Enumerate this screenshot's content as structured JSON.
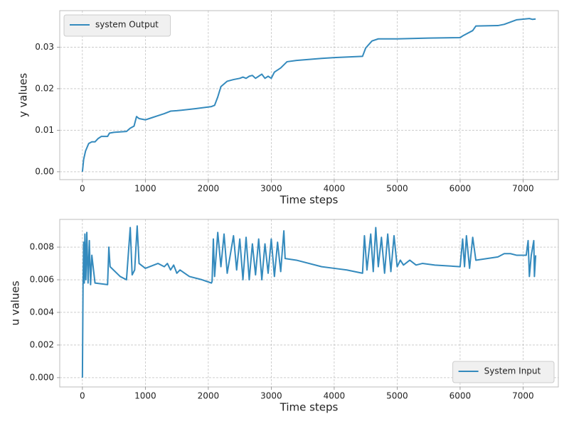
{
  "chart_data": [
    {
      "type": "line",
      "xlabel": "Time steps",
      "ylabel": "y values",
      "x": [
        0,
        20,
        50,
        100,
        150,
        200,
        250,
        300,
        400,
        430,
        500,
        700,
        760,
        820,
        860,
        900,
        1000,
        1100,
        1200,
        1300,
        1400,
        1500,
        1800,
        2050,
        2100,
        2150,
        2200,
        2300,
        2400,
        2500,
        2550,
        2600,
        2650,
        2700,
        2750,
        2800,
        2850,
        2900,
        2950,
        3000,
        3050,
        3150,
        3250,
        3400,
        3800,
        4000,
        4450,
        4500,
        4600,
        4700,
        5000,
        5500,
        6000,
        6050,
        6200,
        6250,
        6600,
        6700,
        6900,
        7100,
        7150,
        7200
      ],
      "series": [
        {
          "name": "system Output",
          "color": "#348abd",
          "values": [
            0,
            0.003,
            0.005,
            0.0068,
            0.0072,
            0.0072,
            0.008,
            0.0085,
            0.0085,
            0.0093,
            0.0095,
            0.0097,
            0.0105,
            0.011,
            0.0133,
            0.0128,
            0.0125,
            0.013,
            0.0135,
            0.014,
            0.0146,
            0.0147,
            0.0152,
            0.0157,
            0.016,
            0.018,
            0.0205,
            0.0218,
            0.0222,
            0.0225,
            0.0228,
            0.0225,
            0.023,
            0.0232,
            0.0225,
            0.023,
            0.0235,
            0.0225,
            0.023,
            0.0225,
            0.024,
            0.025,
            0.0265,
            0.0268,
            0.0273,
            0.0275,
            0.0278,
            0.0298,
            0.0315,
            0.032,
            0.032,
            0.0322,
            0.0323,
            0.0328,
            0.034,
            0.0351,
            0.0352,
            0.0355,
            0.0366,
            0.0369,
            0.0367,
            0.0368
          ]
        }
      ],
      "xlim": [
        -360,
        7560
      ],
      "ylim": [
        -0.0019,
        0.0388
      ],
      "xticks": [
        0,
        1000,
        2000,
        3000,
        4000,
        5000,
        6000,
        7000
      ],
      "yticks": [
        {
          "value": 0,
          "label": "0.00"
        },
        {
          "value": 0.01,
          "label": "0.01"
        },
        {
          "value": 0.02,
          "label": "0.02"
        },
        {
          "value": 0.03,
          "label": "0.03"
        }
      ],
      "grid": true,
      "legend": "upper left"
    },
    {
      "type": "line",
      "xlabel": "Time steps",
      "ylabel": "u values",
      "x": [
        0,
        10,
        20,
        30,
        40,
        55,
        70,
        90,
        110,
        130,
        150,
        200,
        400,
        420,
        440,
        600,
        700,
        760,
        790,
        830,
        870,
        900,
        1000,
        1200,
        1300,
        1350,
        1400,
        1450,
        1500,
        1550,
        1700,
        1900,
        2050,
        2060,
        2080,
        2100,
        2150,
        2200,
        2250,
        2300,
        2400,
        2450,
        2500,
        2550,
        2600,
        2650,
        2700,
        2750,
        2800,
        2850,
        2900,
        2950,
        3000,
        3050,
        3100,
        3150,
        3200,
        3220,
        3400,
        3800,
        4000,
        4200,
        4450,
        4480,
        4520,
        4580,
        4620,
        4660,
        4700,
        4750,
        4800,
        4850,
        4900,
        4950,
        5000,
        5050,
        5100,
        5200,
        5300,
        5400,
        5600,
        6000,
        6040,
        6070,
        6100,
        6150,
        6200,
        6250,
        6600,
        6700,
        6800,
        6900,
        7050,
        7080,
        7100,
        7130,
        7170,
        7180,
        7200
      ],
      "series": [
        {
          "name": "System Input",
          "color": "#348abd",
          "values": [
            0,
            0.0056,
            0.0083,
            0.0058,
            0.0088,
            0.006,
            0.0089,
            0.0058,
            0.0084,
            0.0057,
            0.0075,
            0.0058,
            0.0057,
            0.008,
            0.0068,
            0.0062,
            0.006,
            0.0092,
            0.0063,
            0.0066,
            0.0093,
            0.007,
            0.0067,
            0.007,
            0.0068,
            0.007,
            0.0066,
            0.0069,
            0.0064,
            0.0066,
            0.0062,
            0.006,
            0.0058,
            0.0059,
            0.0085,
            0.0062,
            0.0089,
            0.0068,
            0.0088,
            0.0064,
            0.0087,
            0.0066,
            0.0085,
            0.006,
            0.0086,
            0.006,
            0.0082,
            0.0063,
            0.0085,
            0.006,
            0.0082,
            0.0064,
            0.0085,
            0.0062,
            0.0083,
            0.0065,
            0.009,
            0.0073,
            0.0072,
            0.0068,
            0.0067,
            0.0066,
            0.0064,
            0.0087,
            0.0066,
            0.0088,
            0.0065,
            0.0092,
            0.0068,
            0.0086,
            0.0064,
            0.0088,
            0.0065,
            0.0087,
            0.0068,
            0.0072,
            0.0069,
            0.0072,
            0.0069,
            0.007,
            0.0069,
            0.0068,
            0.0085,
            0.0068,
            0.0087,
            0.0067,
            0.0086,
            0.0072,
            0.0074,
            0.0076,
            0.0076,
            0.0075,
            0.0075,
            0.0084,
            0.0062,
            0.0075,
            0.0084,
            0.0062,
            0.0075
          ]
        }
      ],
      "xlim": [
        -360,
        7560
      ],
      "ylim": [
        -0.00057,
        0.0097
      ],
      "xticks": [
        0,
        1000,
        2000,
        3000,
        4000,
        5000,
        6000,
        7000
      ],
      "yticks": [
        {
          "value": 0,
          "label": "0.000"
        },
        {
          "value": 0.002,
          "label": "0.002"
        },
        {
          "value": 0.004,
          "label": "0.004"
        },
        {
          "value": 0.006,
          "label": "0.006"
        },
        {
          "value": 0.008,
          "label": "0.008"
        }
      ],
      "grid": true,
      "legend": "lower right"
    }
  ]
}
